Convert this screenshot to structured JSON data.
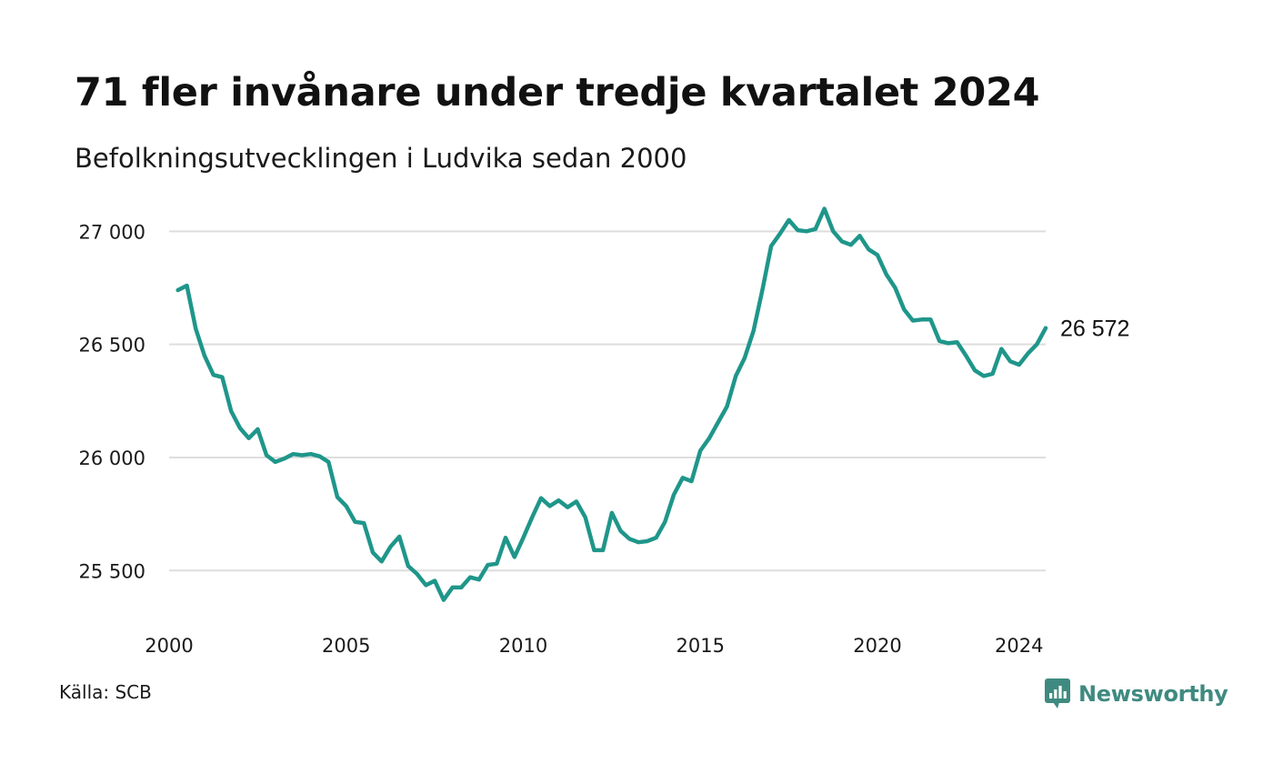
{
  "header": {
    "title": "71 fler invånare under tredje kvartalet 2024",
    "subtitle": "Befolkningsutvecklingen i Ludvika sedan 2000"
  },
  "footer": {
    "source": "Källa: SCB",
    "brand": "Newsworthy",
    "brand_icon": "bar-chart-speech-bubble-icon"
  },
  "colors": {
    "line": "#1f968a",
    "grid": "#dedede",
    "brand": "#3f8a80"
  },
  "chart_data": {
    "type": "line",
    "title": "71 fler invånare under tredje kvartalet 2024",
    "subtitle": "Befolkningsutvecklingen i Ludvika sedan 2000",
    "xlabel": "",
    "ylabel": "",
    "xlim": [
      2000,
      2024.75
    ],
    "ylim": [
      25300,
      27130
    ],
    "grid": true,
    "x_ticks": [
      {
        "value": 2000,
        "label": "2000"
      },
      {
        "value": 2005,
        "label": "2005"
      },
      {
        "value": 2010,
        "label": "2010"
      },
      {
        "value": 2015,
        "label": "2015"
      },
      {
        "value": 2020,
        "label": "2020"
      },
      {
        "value": 2024,
        "label": "2024"
      }
    ],
    "y_ticks": [
      {
        "value": 25500,
        "label": "25 500"
      },
      {
        "value": 26000,
        "label": "26 000"
      },
      {
        "value": 26500,
        "label": "26 500"
      },
      {
        "value": 27000,
        "label": "27 000"
      }
    ],
    "end_label": "26 572",
    "series": [
      {
        "x": [
          2000.25,
          2000.5,
          2000.75,
          2001,
          2001.25,
          2001.5,
          2001.75,
          2002,
          2002.25,
          2002.5,
          2002.75,
          2003,
          2003.25,
          2003.5,
          2003.75,
          2004,
          2004.25,
          2004.5,
          2004.75,
          2005,
          2005.25,
          2005.5,
          2005.75,
          2006,
          2006.25,
          2006.5,
          2006.75,
          2007,
          2007.25,
          2007.5,
          2007.75,
          2008,
          2008.25,
          2008.5,
          2008.75,
          2009,
          2009.25,
          2009.5,
          2009.75,
          2010,
          2010.25,
          2010.5,
          2010.75,
          2011,
          2011.25,
          2011.5,
          2011.75,
          2012,
          2012.25,
          2012.5,
          2012.75,
          2013,
          2013.25,
          2013.5,
          2013.75,
          2014,
          2014.25,
          2014.5,
          2014.75,
          2015,
          2015.25,
          2015.5,
          2015.75,
          2016,
          2016.25,
          2016.5,
          2016.75,
          2017,
          2017.25,
          2017.5,
          2017.75,
          2018,
          2018.25,
          2018.5,
          2018.75,
          2019,
          2019.25,
          2019.5,
          2019.75,
          2020,
          2020.25,
          2020.5,
          2020.75,
          2021,
          2021.25,
          2021.5,
          2021.75,
          2022,
          2022.25,
          2022.5,
          2022.75,
          2023,
          2023.25,
          2023.5,
          2023.75,
          2024,
          2024.25,
          2024.5,
          2024.75
        ],
        "values": [
          26740,
          26760,
          26570,
          26450,
          26365,
          26355,
          26205,
          26130,
          26085,
          26125,
          26010,
          25980,
          25995,
          26015,
          26010,
          26015,
          26005,
          25980,
          25825,
          25785,
          25715,
          25710,
          25580,
          25540,
          25605,
          25650,
          25520,
          25485,
          25435,
          25455,
          25370,
          25425,
          25425,
          25470,
          25460,
          25525,
          25530,
          25645,
          25560,
          25645,
          25735,
          25820,
          25785,
          25810,
          25780,
          25805,
          25735,
          25590,
          25590,
          25755,
          25675,
          25640,
          25625,
          25630,
          25645,
          25715,
          25835,
          25910,
          25895,
          26030,
          26085,
          26155,
          26225,
          26360,
          26440,
          26560,
          26740,
          26935,
          26990,
          27050,
          27005,
          27000,
          27010,
          27100,
          27000,
          26955,
          26940,
          26980,
          26920,
          26895,
          26810,
          26750,
          26655,
          26605,
          26610,
          26610,
          26515,
          26505,
          26510,
          26450,
          26385,
          26360,
          26370,
          26480,
          26425,
          26410,
          26460,
          26500,
          26572
        ]
      }
    ]
  }
}
